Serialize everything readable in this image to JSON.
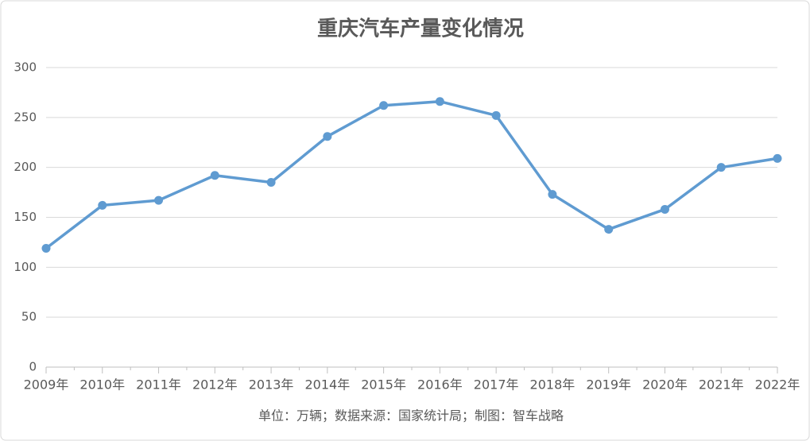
{
  "chart_data": {
    "type": "line",
    "title": "重庆汽车产量变化情况",
    "categories": [
      "2009年",
      "2010年",
      "2011年",
      "2012年",
      "2013年",
      "2014年",
      "2015年",
      "2016年",
      "2017年",
      "2018年",
      "2019年",
      "2020年",
      "2021年",
      "2022年"
    ],
    "values": [
      119,
      162,
      167,
      192,
      185,
      231,
      262,
      266,
      252,
      173,
      138,
      158,
      200,
      209
    ],
    "color": "#5f9bd1",
    "ylim": [
      0,
      300
    ],
    "yticks": [
      0,
      50,
      100,
      150,
      200,
      250,
      300
    ],
    "grid": true,
    "note": "单位：万辆；数据来源：国家统计局；制图：智车战略"
  }
}
